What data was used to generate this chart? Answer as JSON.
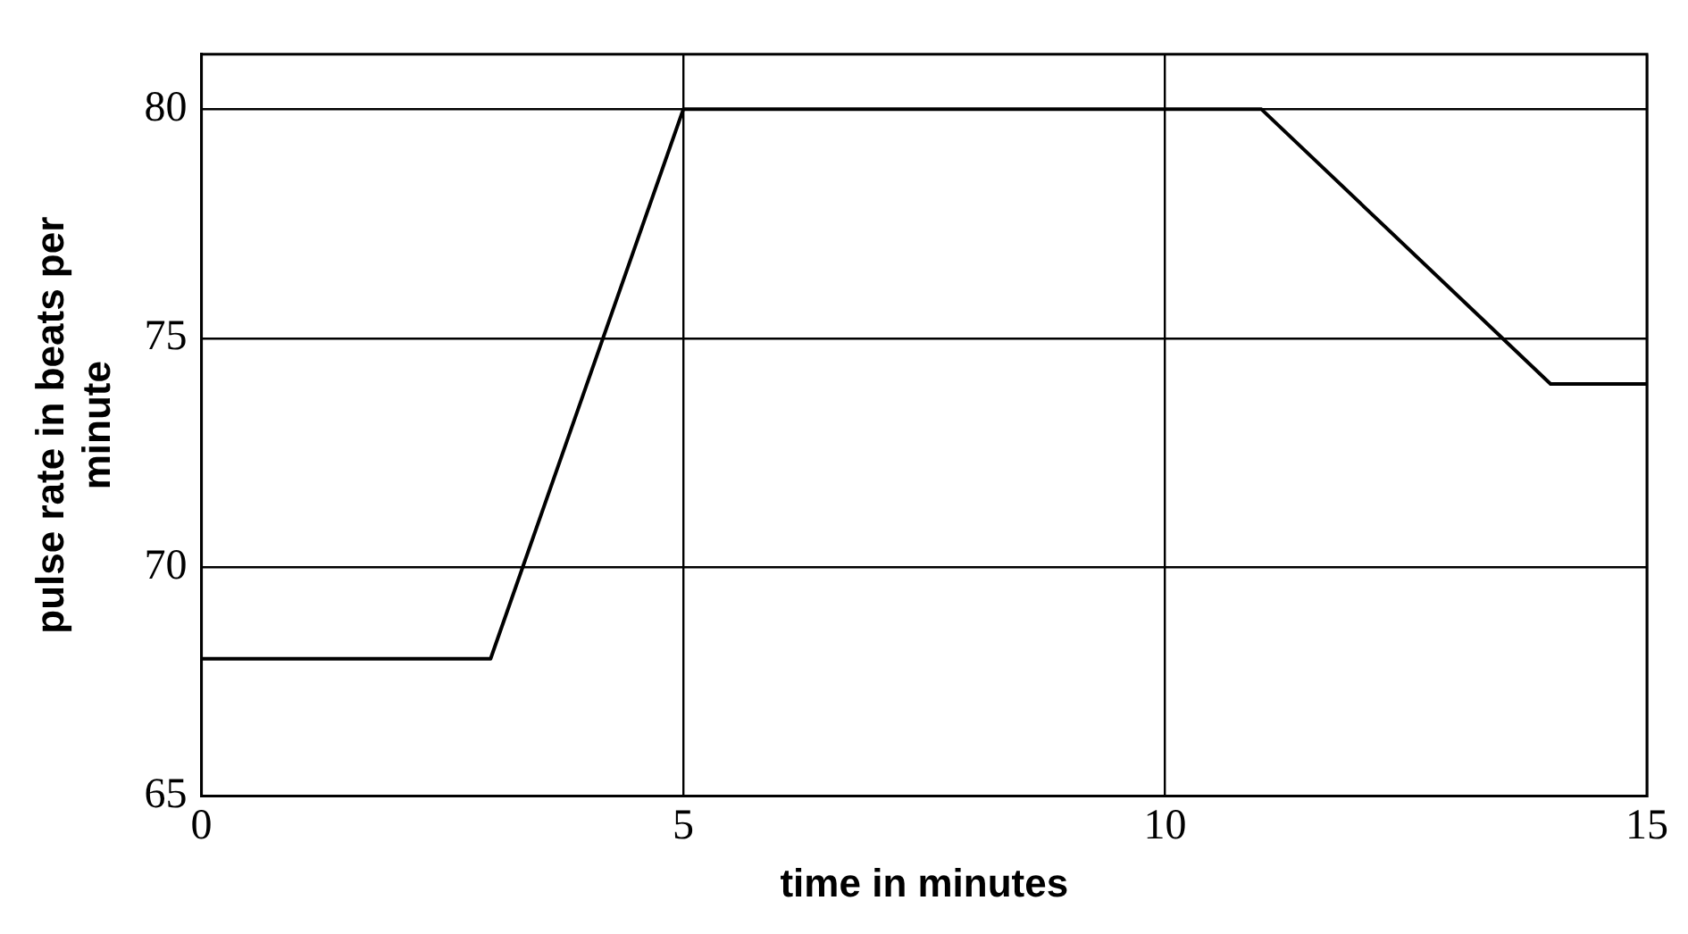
{
  "chart_data": {
    "type": "line",
    "xlabel": "time in minutes",
    "ylabel": "pulse rate in beats per minute",
    "x": [
      0,
      3,
      5,
      11,
      14,
      15
    ],
    "series": [
      {
        "color": "#000000",
        "values": [
          68,
          68,
          80,
          80,
          74,
          74
        ]
      }
    ],
    "xlim": [
      0,
      15
    ],
    "xticks": [
      0,
      5,
      10,
      15
    ],
    "ylim": [
      65,
      81.2
    ],
    "yticks": [
      65,
      70,
      75,
      80
    ],
    "grid": true,
    "legend": false,
    "marker": "none",
    "line_style": "solid"
  }
}
